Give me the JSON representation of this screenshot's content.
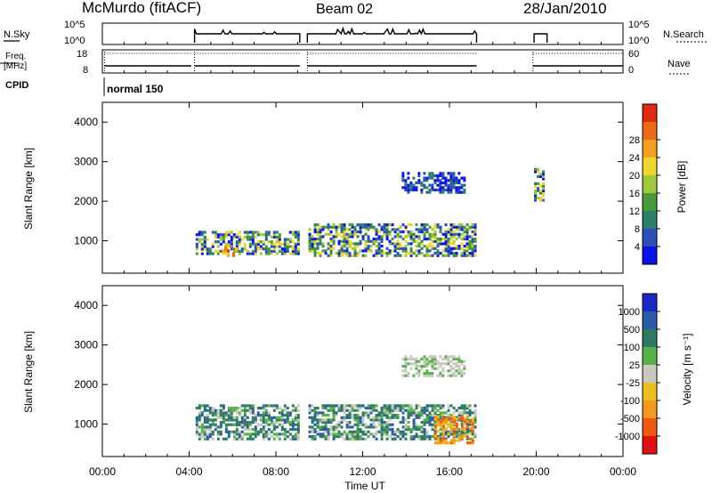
{
  "header": {
    "station": "McMurdo (fitACF)",
    "beam": "Beam 02",
    "date": "28/Jan/2010"
  },
  "sidebars": {
    "nsky": "N.Sky",
    "freq_line1": "Freq.",
    "freq_line2": "[MHz]",
    "cpid": "CPID",
    "nsearch": "N.Search",
    "nave": "Nave",
    "cpid_label": "normal 150"
  },
  "chart_data": [
    {
      "type": "line",
      "name": "noise-panel",
      "ylabel": "N.Sky",
      "yticks": [
        "10^5",
        "10^0"
      ],
      "right_yticks": [
        "10^5",
        "10^0"
      ],
      "right_label": "N.Search",
      "segments_hours": [
        [
          4.25,
          9.1
        ],
        [
          9.45,
          17.25
        ],
        [
          19.9,
          20.5
        ]
      ]
    },
    {
      "type": "line",
      "name": "freq-panel",
      "ylabel": "Freq. [MHz]",
      "yticks": [
        18,
        8
      ],
      "right_yticks": [
        60,
        0
      ],
      "right_label": "Nave",
      "freq_mhz": 10,
      "segments_hours": [
        [
          0.1,
          4.1
        ],
        [
          4.25,
          9.1
        ],
        [
          9.45,
          17.25
        ],
        [
          19.85,
          24.0
        ]
      ]
    },
    {
      "type": "heatmap",
      "name": "power",
      "ylabel": "Slant Range [km]",
      "ylim": [
        180,
        4500
      ],
      "yticks": [
        1000,
        2000,
        3000,
        4000
      ],
      "xlim": [
        0,
        24
      ],
      "colorbar": {
        "label": "Power [dB]",
        "ticks": [
          "4",
          "8",
          "12",
          "16",
          "20",
          "24",
          "28"
        ],
        "colors": [
          "#0a14e6",
          "#2c4fb8",
          "#2e7f6a",
          "#4a9a3a",
          "#9fc83a",
          "#f0d430",
          "#f3a020",
          "#ef6a18",
          "#e22a10"
        ]
      },
      "echo_regions": [
        {
          "t0": 4.3,
          "t1": 9.1,
          "r0": 650,
          "r1": 1200,
          "level": "medium"
        },
        {
          "t0": 5.5,
          "t1": 6.2,
          "r0": 600,
          "r1": 900,
          "level": "high"
        },
        {
          "t0": 9.5,
          "t1": 17.2,
          "r0": 600,
          "r1": 1400,
          "level": "medium"
        },
        {
          "t0": 13.8,
          "t1": 16.7,
          "r0": 2200,
          "r1": 2700,
          "level": "low"
        },
        {
          "t0": 19.9,
          "t1": 20.4,
          "r0": 2000,
          "r1": 2800,
          "level": "medium"
        }
      ]
    },
    {
      "type": "heatmap",
      "name": "velocity",
      "ylabel": "Slant Range [km]",
      "ylim": [
        180,
        4500
      ],
      "yticks": [
        1000,
        2000,
        3000,
        4000
      ],
      "xlim": [
        0,
        24
      ],
      "xticks": [
        "00:00",
        "04:00",
        "08:00",
        "12:00",
        "16:00",
        "20:00",
        "00:00"
      ],
      "xlabel": "Time UT",
      "colorbar": {
        "label": "Velocity [m s⁻¹]",
        "ticks": [
          "1000",
          "500",
          "100",
          "25",
          "-25",
          "-100",
          "-500",
          "-1000"
        ],
        "colors": [
          "#1a28c8",
          "#2a5aa8",
          "#2e7a64",
          "#58b048",
          "#c8c8c0",
          "#e8c020",
          "#f39820",
          "#ee5a10",
          "#e01010"
        ]
      },
      "echo_regions": [
        {
          "t0": 4.3,
          "t1": 9.1,
          "r0": 600,
          "r1": 1500,
          "level": "green"
        },
        {
          "t0": 9.5,
          "t1": 17.2,
          "r0": 600,
          "r1": 1500,
          "level": "green"
        },
        {
          "t0": 13.8,
          "t1": 16.7,
          "r0": 2200,
          "r1": 2700,
          "level": "gray"
        },
        {
          "t0": 15.3,
          "t1": 17.2,
          "r0": 500,
          "r1": 1200,
          "level": "orange"
        }
      ]
    }
  ]
}
